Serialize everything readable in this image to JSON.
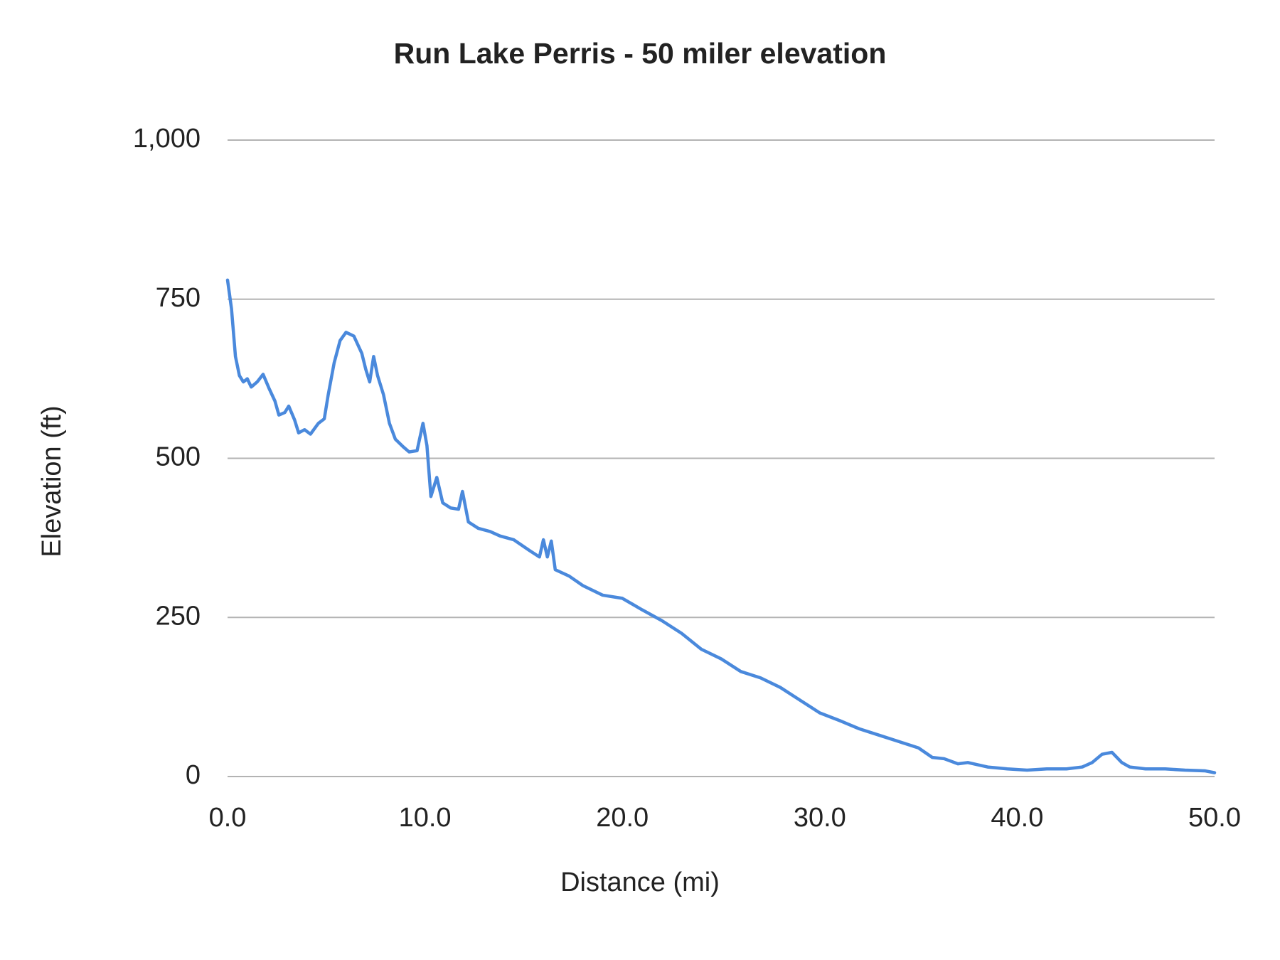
{
  "chart_data": {
    "type": "line",
    "title": "Run Lake Perris - 50 miler elevation",
    "x_label": "Distance (mi)",
    "y_label": "Elevation (ft)",
    "color": "#4a89dc",
    "grid": true,
    "xlim": [
      0,
      50
    ],
    "ylim": [
      0,
      1000
    ],
    "xticks": [
      {
        "value": 0,
        "label": "0.0"
      },
      {
        "value": 10,
        "label": "10.0"
      },
      {
        "value": 20,
        "label": "20.0"
      },
      {
        "value": 30,
        "label": "30.0"
      },
      {
        "value": 40,
        "label": "40.0"
      },
      {
        "value": 50,
        "label": "50.0"
      }
    ],
    "yticks": [
      0,
      250,
      500,
      750,
      {
        "value": 1000,
        "label": "1,000"
      }
    ],
    "x": [
      0,
      0.2,
      0.4,
      0.6,
      0.8,
      1.0,
      1.2,
      1.5,
      1.8,
      2.1,
      2.4,
      2.6,
      2.9,
      3.1,
      3.4,
      3.6,
      3.9,
      4.2,
      4.6,
      4.9,
      5.1,
      5.4,
      5.7,
      6.0,
      6.4,
      6.8,
      7.0,
      7.2,
      7.4,
      7.6,
      7.9,
      8.2,
      8.5,
      8.9,
      9.2,
      9.6,
      9.9,
      10.1,
      10.3,
      10.6,
      10.9,
      11.3,
      11.7,
      11.9,
      12.2,
      12.7,
      13.3,
      13.8,
      14.5,
      15.3,
      15.8,
      16.0,
      16.2,
      16.4,
      16.6,
      17.3,
      18.0,
      19.0,
      20.0,
      21.0,
      22.0,
      23.0,
      24.0,
      25.0,
      26.0,
      27.0,
      28.0,
      29.0,
      30.0,
      31.0,
      32.0,
      33.0,
      34.0,
      35.0,
      35.7,
      36.3,
      37.0,
      37.5,
      38.5,
      39.5,
      40.5,
      41.5,
      42.5,
      43.3,
      43.8,
      44.3,
      44.8,
      45.3,
      45.7,
      46.5,
      47.5,
      48.5,
      49.5,
      50.0
    ],
    "values": [
      780,
      735,
      660,
      630,
      620,
      625,
      612,
      620,
      632,
      610,
      590,
      568,
      572,
      582,
      560,
      540,
      545,
      538,
      555,
      562,
      600,
      650,
      685,
      698,
      692,
      665,
      640,
      620,
      660,
      630,
      600,
      555,
      530,
      518,
      510,
      512,
      555,
      520,
      440,
      470,
      430,
      422,
      420,
      448,
      400,
      390,
      385,
      378,
      372,
      355,
      345,
      372,
      345,
      370,
      325,
      315,
      300,
      285,
      280,
      262,
      245,
      225,
      200,
      185,
      165,
      155,
      140,
      120,
      100,
      88,
      75,
      65,
      55,
      45,
      30,
      28,
      20,
      22,
      15,
      12,
      10,
      12,
      12,
      15,
      22,
      35,
      38,
      22,
      15,
      12,
      12,
      10,
      9,
      6
    ]
  }
}
